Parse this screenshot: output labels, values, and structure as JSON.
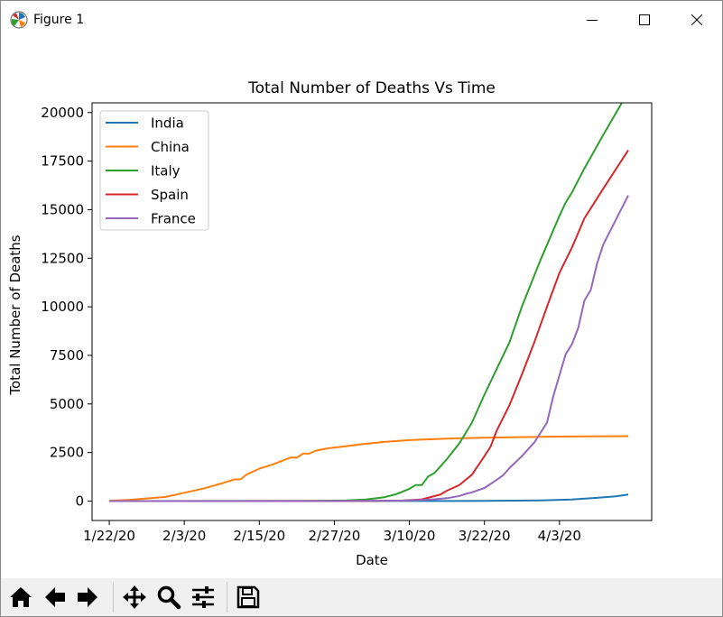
{
  "window": {
    "title": "Figure 1",
    "minimize_icon": "minimize-icon",
    "maximize_icon": "maximize-icon",
    "close_icon": "close-icon"
  },
  "toolbar": {
    "buttons": [
      {
        "name": "home-icon"
      },
      {
        "name": "back-arrow-icon"
      },
      {
        "name": "forward-arrow-icon"
      },
      {
        "name": "pan-icon"
      },
      {
        "name": "zoom-icon"
      },
      {
        "name": "configure-subplots-icon"
      },
      {
        "name": "save-icon"
      }
    ]
  },
  "chart_data": {
    "type": "line",
    "title": "Total Number of Deaths Vs Time",
    "xlabel": "Date",
    "ylabel": "Total Number of Deaths",
    "x_start_date": "1/22/20",
    "x_ticks": [
      "1/22/20",
      "2/3/20",
      "2/15/20",
      "2/27/20",
      "3/10/20",
      "3/22/20",
      "4/3/20"
    ],
    "y_ticks": [
      "0",
      "2500",
      "5000",
      "7500",
      "10000",
      "12500",
      "15000",
      "17500",
      "20000"
    ],
    "ylim": [
      -1000,
      20500
    ],
    "grid": false,
    "legend_position": "upper-left",
    "colors": {
      "India": "#1f77b4",
      "China": "#ff7f0e",
      "Italy": "#2ca02c",
      "Spain": "#d62728",
      "France": "#9467bd"
    },
    "series": [
      {
        "name": "India",
        "points": [
          [
            "1/22/20",
            0
          ],
          [
            "3/12/20",
            1
          ],
          [
            "3/22/20",
            7
          ],
          [
            "3/31/20",
            35
          ],
          [
            "4/5/20",
            83
          ],
          [
            "4/9/20",
            166
          ],
          [
            "4/12/20",
            242
          ],
          [
            "4/14/20",
            331
          ]
        ]
      },
      {
        "name": "China",
        "points": [
          [
            "1/22/20",
            17
          ],
          [
            "1/25/20",
            56
          ],
          [
            "1/28/20",
            132
          ],
          [
            "1/31/20",
            213
          ],
          [
            "2/3/20",
            426
          ],
          [
            "2/6/20",
            637
          ],
          [
            "2/9/20",
            908
          ],
          [
            "2/11/20",
            1113
          ],
          [
            "2/12/20",
            1118
          ],
          [
            "2/13/20",
            1371
          ],
          [
            "2/15/20",
            1666
          ],
          [
            "2/17/20",
            1868
          ],
          [
            "2/19/20",
            2118
          ],
          [
            "2/20/20",
            2236
          ],
          [
            "2/21/20",
            2236
          ],
          [
            "2/22/20",
            2441
          ],
          [
            "2/23/20",
            2443
          ],
          [
            "2/24/20",
            2593
          ],
          [
            "2/26/20",
            2715
          ],
          [
            "2/28/20",
            2788
          ],
          [
            "3/2/20",
            2915
          ],
          [
            "3/6/20",
            3045
          ],
          [
            "3/10/20",
            3136
          ],
          [
            "3/16/20",
            3218
          ],
          [
            "3/22/20",
            3261
          ],
          [
            "4/1/20",
            3312
          ],
          [
            "4/14/20",
            3341
          ]
        ]
      },
      {
        "name": "Italy",
        "points": [
          [
            "2/21/20",
            1
          ],
          [
            "2/29/20",
            29
          ],
          [
            "3/3/20",
            79
          ],
          [
            "3/6/20",
            197
          ],
          [
            "3/8/20",
            366
          ],
          [
            "3/10/20",
            631
          ],
          [
            "3/11/20",
            827
          ],
          [
            "3/12/20",
            827
          ],
          [
            "3/13/20",
            1266
          ],
          [
            "3/14/20",
            1441
          ],
          [
            "3/16/20",
            2158
          ],
          [
            "3/18/20",
            2978
          ],
          [
            "3/20/20",
            4032
          ],
          [
            "3/22/20",
            5476
          ],
          [
            "3/24/20",
            6820
          ],
          [
            "3/26/20",
            8165
          ],
          [
            "3/28/20",
            10023
          ],
          [
            "3/31/20",
            12428
          ],
          [
            "4/3/20",
            14681
          ],
          [
            "4/4/20",
            15362
          ],
          [
            "4/5/20",
            15887
          ],
          [
            "4/7/20",
            17127
          ],
          [
            "4/10/20",
            18849
          ],
          [
            "4/14/20",
            21067
          ]
        ]
      },
      {
        "name": "Spain",
        "points": [
          [
            "3/3/20",
            1
          ],
          [
            "3/9/20",
            28
          ],
          [
            "3/12/20",
            86
          ],
          [
            "3/15/20",
            342
          ],
          [
            "3/16/20",
            533
          ],
          [
            "3/18/20",
            831
          ],
          [
            "3/20/20",
            1353
          ],
          [
            "3/22/20",
            2311
          ],
          [
            "3/23/20",
            2808
          ],
          [
            "3/24/20",
            3647
          ],
          [
            "3/26/20",
            4934
          ],
          [
            "3/28/20",
            6528
          ],
          [
            "3/30/20",
            8189
          ],
          [
            "4/1/20",
            10003
          ],
          [
            "4/3/20",
            11744
          ],
          [
            "4/5/20",
            13055
          ],
          [
            "4/7/20",
            14555
          ],
          [
            "4/10/20",
            16081
          ],
          [
            "4/14/20",
            18056
          ]
        ]
      },
      {
        "name": "France",
        "points": [
          [
            "2/15/20",
            1
          ],
          [
            "3/1/20",
            2
          ],
          [
            "3/9/20",
            25
          ],
          [
            "3/12/20",
            61
          ],
          [
            "3/14/20",
            91
          ],
          [
            "3/16/20",
            148
          ],
          [
            "3/18/20",
            264
          ],
          [
            "3/19/20",
            372
          ],
          [
            "3/20/20",
            450
          ],
          [
            "3/22/20",
            674
          ],
          [
            "3/24/20",
            1100
          ],
          [
            "3/25/20",
            1331
          ],
          [
            "3/26/20",
            1696
          ],
          [
            "3/28/20",
            2314
          ],
          [
            "3/30/20",
            3024
          ],
          [
            "4/1/20",
            4032
          ],
          [
            "4/2/20",
            5387
          ],
          [
            "4/4/20",
            7560
          ],
          [
            "4/5/20",
            8078
          ],
          [
            "4/6/20",
            8911
          ],
          [
            "4/7/20",
            10328
          ],
          [
            "4/8/20",
            10869
          ],
          [
            "4/9/20",
            12210
          ],
          [
            "4/10/20",
            13197
          ],
          [
            "4/11/20",
            13832
          ],
          [
            "4/14/20",
            15729
          ]
        ]
      }
    ]
  }
}
